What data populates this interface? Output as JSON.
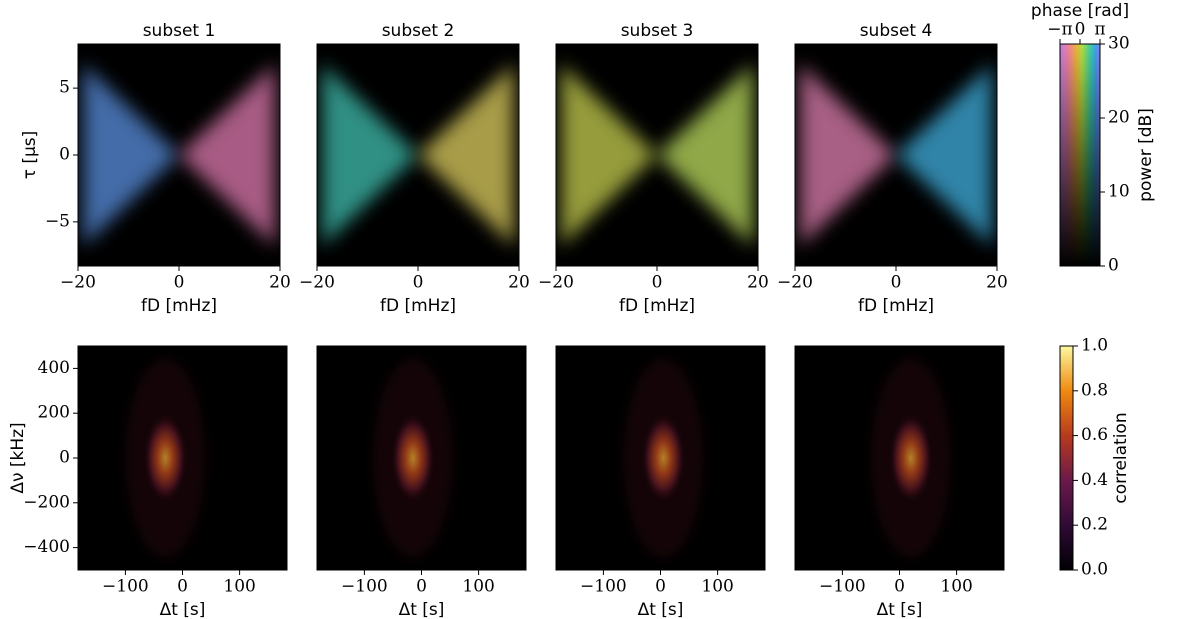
{
  "chart_data": [
    {
      "type": "heatmap",
      "title": "subset 1",
      "xlabel": "fD [mHz]",
      "ylabel": "τ [μs]",
      "xlim": [
        -20,
        20
      ],
      "xticks": [
        {
          "value": -20,
          "label": "−20"
        },
        0,
        20
      ],
      "ylim": [
        -8.3,
        8.3
      ],
      "yticks": [
        {
          "value": -5,
          "label": "−5"
        },
        0,
        5
      ]
    },
    {
      "type": "heatmap",
      "title": "subset 2",
      "xlabel": "fD [mHz]",
      "xlim": [
        -20,
        20
      ],
      "xticks": [
        {
          "value": -20,
          "label": "−20"
        },
        0,
        20
      ],
      "ylim": [
        -8.3,
        8.3
      ]
    },
    {
      "type": "heatmap",
      "title": "subset 3",
      "xlabel": "fD [mHz]",
      "xlim": [
        -20,
        20
      ],
      "xticks": [
        {
          "value": -20,
          "label": "−20"
        },
        0,
        20
      ],
      "ylim": [
        -8.3,
        8.3
      ]
    },
    {
      "type": "heatmap",
      "title": "subset 4",
      "xlabel": "fD [mHz]",
      "xlim": [
        -20,
        20
      ],
      "xticks": [
        {
          "value": -20,
          "label": "−20"
        },
        0,
        20
      ],
      "ylim": [
        -8.3,
        8.3
      ]
    },
    {
      "type": "heatmap",
      "xlabel": "Δt [s]",
      "ylabel": "Δν [kHz]",
      "xlim": [
        -183,
        183
      ],
      "xticks": [
        {
          "value": -100,
          "label": "−100"
        },
        0,
        100
      ],
      "ylim": [
        -500,
        500
      ],
      "yticks": [
        {
          "value": -400,
          "label": "−400"
        },
        {
          "value": -200,
          "label": "−200"
        },
        0,
        200,
        400
      ]
    },
    {
      "type": "heatmap",
      "xlabel": "Δt [s]",
      "xlim": [
        -183,
        183
      ],
      "xticks": [
        {
          "value": -100,
          "label": "−100"
        },
        0,
        100
      ],
      "ylim": [
        -500,
        500
      ]
    },
    {
      "type": "heatmap",
      "xlabel": "Δt [s]",
      "xlim": [
        -183,
        183
      ],
      "xticks": [
        {
          "value": -100,
          "label": "−100"
        },
        0,
        100
      ],
      "ylim": [
        -500,
        500
      ]
    },
    {
      "type": "heatmap",
      "xlabel": "Δt [s]",
      "xlim": [
        -183,
        183
      ],
      "xticks": [
        {
          "value": -100,
          "label": "−100"
        },
        0,
        100
      ],
      "ylim": [
        -500,
        500
      ]
    },
    {
      "type": "colorbar",
      "xlabel": "phase [rad]",
      "xlim": [
        -3.1416,
        3.1416
      ],
      "xticks": [
        {
          "value": -3.1416,
          "label": "−π"
        },
        0,
        {
          "value": 3.1416,
          "label": "π"
        }
      ],
      "ylabel": "power [dB]",
      "ylim": [
        0,
        30
      ],
      "yticks": [
        0,
        10,
        20,
        30
      ]
    },
    {
      "type": "colorbar",
      "ylabel": "correlation",
      "ylim": [
        0,
        1
      ],
      "yticks": [
        {
          "value": 0,
          "label": "0.0"
        },
        {
          "value": 0.2,
          "label": "0.2"
        },
        {
          "value": 0.4,
          "label": "0.4"
        },
        {
          "value": 0.6,
          "label": "0.6"
        },
        {
          "value": 0.8,
          "label": "0.8"
        },
        {
          "value": 1,
          "label": "1.0"
        }
      ]
    }
  ]
}
